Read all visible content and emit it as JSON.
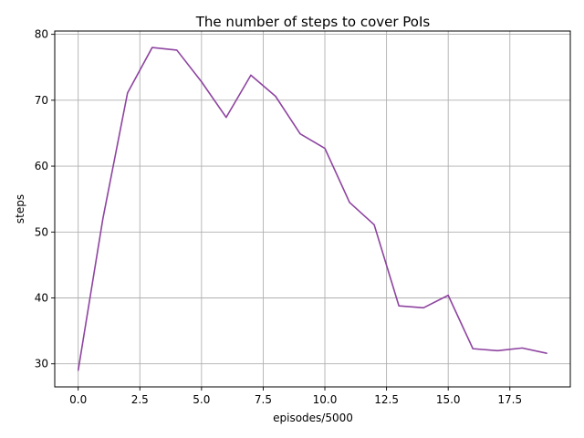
{
  "chart_data": {
    "type": "line",
    "title": "The number of steps to cover PoIs",
    "xlabel": "episodes/5000",
    "ylabel": "steps",
    "xlim": [
      -0.95,
      19.95
    ],
    "ylim": [
      26.5,
      80.5
    ],
    "xticks": [
      0,
      2.5,
      5,
      7.5,
      10,
      12.5,
      15,
      17.5
    ],
    "xtick_labels": [
      "0.0",
      "2.5",
      "5.0",
      "7.5",
      "10.0",
      "12.5",
      "15.0",
      "17.5"
    ],
    "yticks": [
      30,
      40,
      50,
      60,
      70,
      80
    ],
    "ytick_labels": [
      "30",
      "40",
      "50",
      "60",
      "70",
      "80"
    ],
    "grid": true,
    "series": [
      {
        "color": "#8e44a0",
        "x": [
          0,
          1,
          2,
          3,
          4,
          5,
          6,
          7,
          8,
          9,
          10,
          11,
          12,
          13,
          14,
          15,
          16,
          17,
          18,
          19
        ],
        "y": [
          29.0,
          52.0,
          71.1,
          78.0,
          77.6,
          72.8,
          67.4,
          73.8,
          70.6,
          64.9,
          62.7,
          54.5,
          51.1,
          38.8,
          38.5,
          40.4,
          32.3,
          32.0,
          32.4,
          31.6
        ]
      }
    ]
  }
}
